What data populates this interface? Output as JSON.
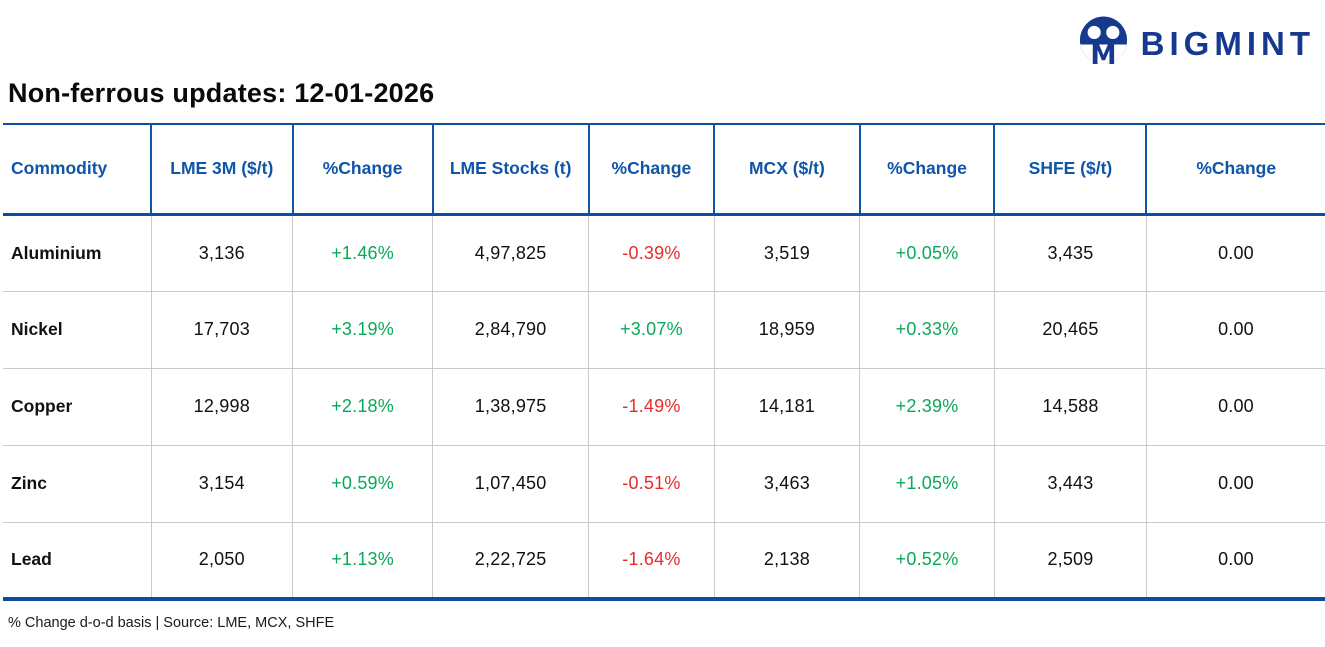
{
  "brand": {
    "name": "BIGMINT",
    "logo_icon": "bigmint-m-icon",
    "navy": "#16398f"
  },
  "page": {
    "title": "Non-ferrous updates: 12-01-2026",
    "footnote": "% Change d-o-d basis | Source: LME, MCX, SHFE"
  },
  "colors": {
    "header_blue": "#0f55a8",
    "border_blue": "#0d4f9e",
    "positive_green": "#0aa859",
    "negative_red": "#ea2a2a",
    "divider_gray": "#cbcbcb"
  },
  "chart_data": {
    "type": "table",
    "title": "Non-ferrous updates: 12-01-2026",
    "columns": [
      "Commodity",
      "LME 3M ($/t)",
      "%Change",
      "LME Stocks (t)",
      "%Change",
      "MCX ($/t)",
      "%Change",
      "SHFE ($/t)",
      "%Change"
    ],
    "rows": [
      [
        "Aluminium",
        "3,136",
        "+1.46%",
        "4,97,825",
        "-0.39%",
        "3,519",
        "+0.05%",
        "3,435",
        "0.00"
      ],
      [
        "Nickel",
        "17,703",
        "+3.19%",
        "2,84,790",
        "+3.07%",
        "18,959",
        "+0.33%",
        "20,465",
        "0.00"
      ],
      [
        "Copper",
        "12,998",
        "+2.18%",
        "1,38,975",
        "-1.49%",
        "14,181",
        "+2.39%",
        "14,588",
        "0.00"
      ],
      [
        "Zinc",
        "3,154",
        "+0.59%",
        "1,07,450",
        "-0.51%",
        "3,463",
        "+1.05%",
        "3,443",
        "0.00"
      ],
      [
        "Lead",
        "2,050",
        "+1.13%",
        "2,22,725",
        "-1.64%",
        "2,138",
        "+0.52%",
        "2,509",
        "0.00"
      ]
    ],
    "column_widths_pct": [
      11.2,
      10.7,
      10.6,
      11.8,
      9.5,
      11.0,
      10.2,
      11.5,
      13.5
    ],
    "notes": "% Change d-o-d basis | Source: LME, MCX, SHFE"
  }
}
